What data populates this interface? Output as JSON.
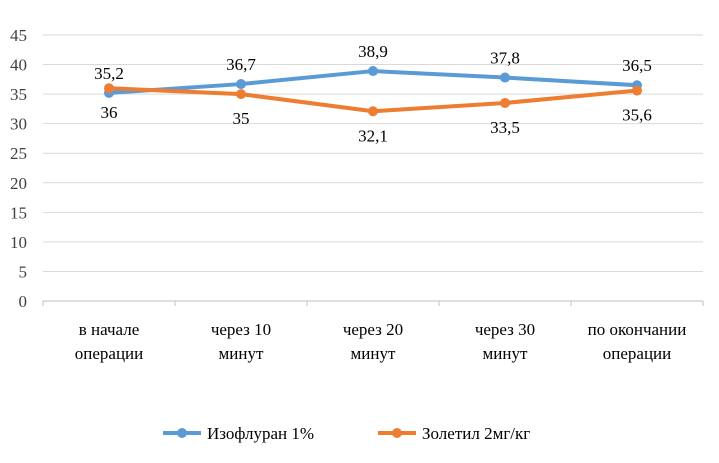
{
  "chart_data": {
    "type": "line",
    "title": "",
    "xlabel": "",
    "ylabel": "",
    "ylim": [
      0,
      45
    ],
    "y_ticks": [
      0,
      5,
      10,
      15,
      20,
      25,
      30,
      35,
      40,
      45
    ],
    "grid": true,
    "legend_position": "bottom",
    "categories": [
      [
        "в начале",
        "операции"
      ],
      [
        "через 10",
        "минут"
      ],
      [
        "через 20",
        "минут"
      ],
      [
        "через 30",
        "минут"
      ],
      [
        "по окончании",
        "операции"
      ]
    ],
    "series": [
      {
        "name": "Изофлуран 1%",
        "color": "#5b9bd5",
        "values": [
          35.2,
          36.7,
          38.9,
          37.8,
          36.5
        ],
        "labels": [
          "35,2",
          "36,7",
          "38,9",
          "37,8",
          "36,5"
        ],
        "label_position": "above"
      },
      {
        "name": "Золетил 2мг/кг",
        "color": "#ed7d31",
        "values": [
          36,
          35,
          32.1,
          33.5,
          35.6
        ],
        "labels": [
          "36",
          "35",
          "32,1",
          "33,5",
          "35,6"
        ],
        "label_position": "below"
      }
    ]
  }
}
